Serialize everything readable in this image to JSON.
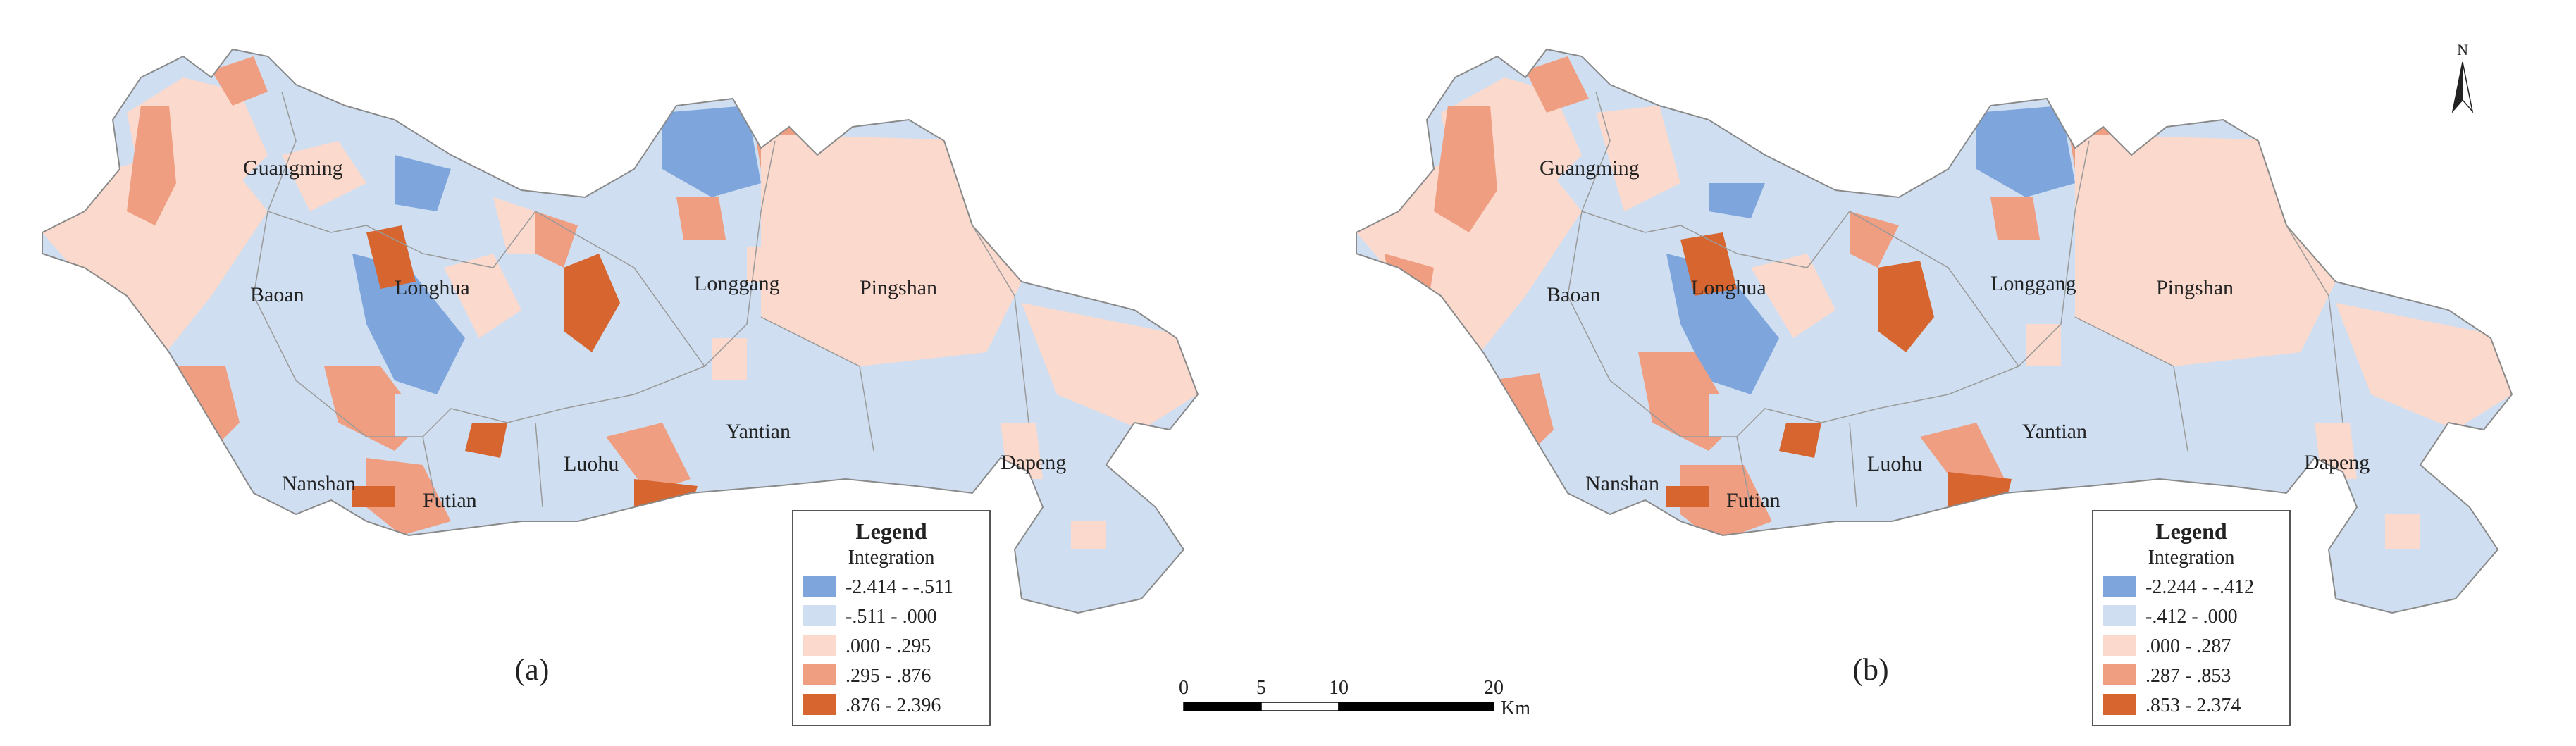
{
  "colors": {
    "class1": "#7ea6dd",
    "class2": "#cfdff1",
    "class3": "#fbd9cc",
    "class4": "#ef9e82",
    "class5": "#d6652f",
    "boundary": "#8a8a8a",
    "text": "#222222"
  },
  "maps": [
    {
      "caption": "(a)",
      "legend": {
        "title": "Legend",
        "subtitle": "Integration",
        "classes": [
          "-2.414 - -.511",
          "-.511 - .000",
          ".000 - .295",
          ".295 - .876",
          ".876 - 2.396"
        ]
      }
    },
    {
      "caption": "(b)",
      "legend": {
        "title": "Legend",
        "subtitle": "Integration",
        "classes": [
          "-2.244 - -.412",
          "-.412 - .000",
          ".000 - .287",
          ".287 - .853",
          ".853 - 2.374"
        ]
      }
    }
  ],
  "districts": [
    "Guangming",
    "Baoan",
    "Longhua",
    "Longgang",
    "Pingshan",
    "Nanshan",
    "Futian",
    "Luohu",
    "Yantian",
    "Dapeng"
  ],
  "scalebar": {
    "ticks": [
      "0",
      "5",
      "10",
      "20"
    ],
    "unit": "Km"
  },
  "north_arrow": {
    "label": "N",
    "icon": "north-arrow-icon"
  }
}
